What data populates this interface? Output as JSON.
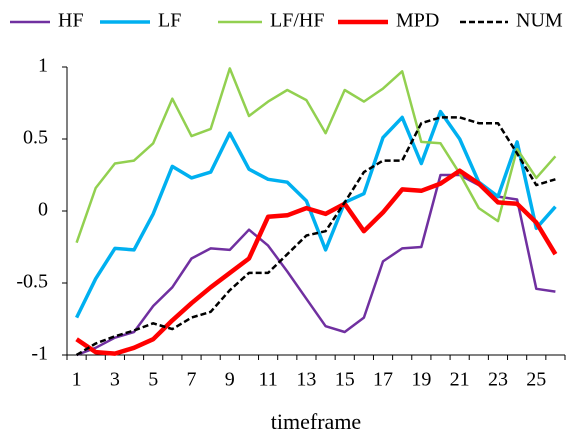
{
  "chart_data": {
    "type": "line",
    "x_label": "timeframe",
    "categories": [
      "1",
      null,
      "3",
      null,
      "5",
      null,
      "7",
      null,
      "9",
      null,
      "11",
      null,
      "13",
      null,
      "15",
      null,
      "17",
      null,
      "19",
      null,
      "21",
      null,
      "23",
      null,
      "25",
      null
    ],
    "ylim": [
      -1,
      1
    ],
    "yticks": [
      -1,
      -0.5,
      0,
      0.5,
      1
    ],
    "legend": "top",
    "series": [
      {
        "name": "HF",
        "color": "#7030a0",
        "values": [
          -1.0,
          -0.95,
          -0.88,
          -0.84,
          -0.66,
          -0.53,
          -0.33,
          -0.26,
          -0.27,
          -0.13,
          -0.24,
          -0.42,
          -0.61,
          -0.8,
          -0.84,
          -0.74,
          -0.35,
          -0.26,
          -0.25,
          0.25,
          0.25,
          0.18,
          0.1,
          0.08,
          -0.54,
          -0.56
        ]
      },
      {
        "name": "LF",
        "color": "#00b0f0",
        "values": [
          -0.74,
          -0.47,
          -0.26,
          -0.27,
          -0.02,
          0.31,
          0.23,
          0.27,
          0.54,
          0.29,
          0.22,
          0.2,
          0.07,
          -0.27,
          0.06,
          0.12,
          0.51,
          0.65,
          0.33,
          0.69,
          0.5,
          0.2,
          0.1,
          0.48,
          -0.12,
          0.03
        ]
      },
      {
        "name": "LF/HF",
        "color": "#92d050",
        "values": [
          -0.22,
          0.16,
          0.33,
          0.35,
          0.47,
          0.78,
          0.52,
          0.57,
          0.99,
          0.66,
          0.76,
          0.84,
          0.77,
          0.54,
          0.84,
          0.76,
          0.85,
          0.97,
          0.48,
          0.47,
          0.26,
          0.02,
          -0.07,
          0.43,
          0.23,
          0.38
        ]
      },
      {
        "name": "MPD",
        "color": "#ff0000",
        "values": [
          -0.89,
          -0.98,
          -0.99,
          -0.95,
          -0.89,
          -0.76,
          -0.64,
          -0.53,
          -0.43,
          -0.33,
          -0.04,
          -0.03,
          0.02,
          -0.02,
          0.05,
          -0.14,
          -0.01,
          0.15,
          0.14,
          0.19,
          0.28,
          0.19,
          0.06,
          0.05,
          -0.08,
          -0.3
        ]
      },
      {
        "name": "NUM",
        "color": "#000000",
        "dashed": true,
        "values": [
          -1.0,
          -0.92,
          -0.87,
          -0.83,
          -0.78,
          -0.82,
          -0.74,
          -0.7,
          -0.55,
          -0.43,
          -0.43,
          -0.3,
          -0.17,
          -0.14,
          0.06,
          0.27,
          0.35,
          0.35,
          0.61,
          0.65,
          0.65,
          0.61,
          0.61,
          0.4,
          0.18,
          0.22
        ]
      }
    ]
  }
}
